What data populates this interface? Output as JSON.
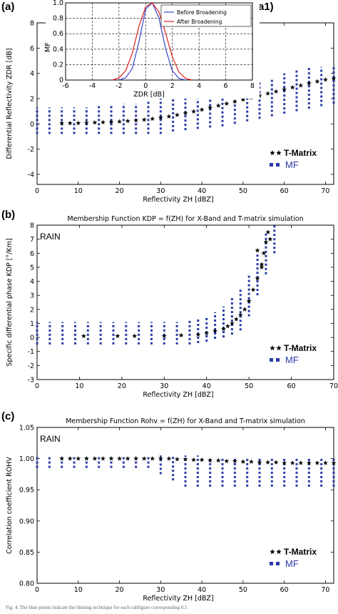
{
  "panels": {
    "a": {
      "letter": "(a)",
      "sub_letter": "(a1)"
    },
    "b": {
      "letter": "(b)"
    },
    "c": {
      "letter": "(c)"
    }
  },
  "colors": {
    "mf": "#2a3aa8",
    "tmatrix": "#000000",
    "before": "#3a44c8",
    "after": "#e02020"
  },
  "caption": "Fig. 4. The blue points indicate the binning technique for each subfigure corresponding 0.1",
  "chart_data": [
    {
      "id": "a",
      "type": "scatter",
      "title": "",
      "xlabel": "Reflectivity ZH [dBZ]",
      "ylabel": "Differential Reflectivity ZDR [dB]",
      "xlim": [
        0,
        72
      ],
      "ylim": [
        -4.8,
        8
      ],
      "xticks": [
        0,
        10,
        20,
        30,
        40,
        50,
        60,
        70
      ],
      "yticks": [
        -4,
        -2,
        0,
        2,
        4,
        6,
        8
      ],
      "xtick_labels": [
        "0",
        "10",
        "20",
        "30",
        "40",
        "50",
        "60",
        "70"
      ],
      "ytick_labels": [
        "-4",
        "-2",
        "0",
        "2",
        "4",
        "6",
        "8"
      ],
      "legend": [
        "T-Matrix",
        "MF"
      ],
      "legend_position": "bottom-right",
      "series": [
        {
          "name": "T-Matrix",
          "marker": "star",
          "x": [
            6,
            8,
            10,
            12,
            14,
            16,
            18,
            20,
            22,
            24,
            26,
            28,
            30,
            32,
            34,
            36,
            38,
            40,
            42,
            44,
            46,
            48,
            50,
            52,
            54,
            56,
            58,
            60,
            62,
            64,
            66,
            68,
            70,
            72
          ],
          "y": [
            0.05,
            0.05,
            0.06,
            0.08,
            0.1,
            0.12,
            0.15,
            0.18,
            0.22,
            0.27,
            0.33,
            0.4,
            0.48,
            0.58,
            0.7,
            0.84,
            0.98,
            1.12,
            1.28,
            1.44,
            1.6,
            1.76,
            1.92,
            2.08,
            2.24,
            2.4,
            2.56,
            2.72,
            2.88,
            3.04,
            3.2,
            3.36,
            3.5,
            3.6
          ]
        },
        {
          "name": "MF",
          "marker": "dashed-band",
          "x": [
            0,
            3,
            6,
            9,
            12,
            15,
            18,
            21,
            24,
            27,
            30,
            33,
            36,
            39,
            42,
            45,
            48,
            51,
            54,
            57,
            60,
            63,
            66,
            69,
            72
          ],
          "low": [
            -0.8,
            -0.8,
            -0.8,
            -0.8,
            -0.8,
            -0.8,
            -0.8,
            -0.8,
            -0.8,
            -0.8,
            -0.8,
            -0.6,
            -0.5,
            -0.4,
            -0.3,
            -0.2,
            0,
            0.2,
            0.4,
            0.6,
            0.8,
            1.0,
            1.2,
            1.4,
            1.6
          ],
          "high": [
            1.3,
            1.3,
            1.3,
            1.3,
            1.3,
            1.4,
            1.5,
            1.6,
            1.6,
            1.8,
            2.0,
            2.2,
            2.3,
            2.4,
            2.6,
            2.8,
            3.0,
            3.2,
            3.4,
            3.6,
            4.0,
            4.3,
            4.5,
            4.5,
            4.5
          ]
        }
      ]
    },
    {
      "id": "a1",
      "type": "line",
      "title": "",
      "xlabel": "ZDR [dB]",
      "ylabel": "MF",
      "xlim": [
        -6,
        8
      ],
      "ylim": [
        0,
        1.0
      ],
      "xticks": [
        -6,
        -4,
        -2,
        0,
        2,
        4,
        6,
        8
      ],
      "yticks": [
        0,
        0.2,
        0.4,
        0.6,
        0.8,
        1.0
      ],
      "xtick_labels": [
        "-6",
        "-4",
        "-2",
        "0",
        "2",
        "4",
        "6",
        "8"
      ],
      "ytick_labels": [
        "0",
        "0.2",
        "0.4",
        "0.6",
        "0.8",
        "1.0"
      ],
      "grid": true,
      "legend_position": "top-right",
      "series": [
        {
          "name": "Before Broadening",
          "x": [
            -2,
            -1.5,
            -1,
            -0.5,
            0,
            0.5,
            1,
            1.5,
            2,
            2.5,
            3
          ],
          "y": [
            0.0,
            0.03,
            0.15,
            0.5,
            0.92,
            1.0,
            0.8,
            0.4,
            0.12,
            0.02,
            0.0
          ]
        },
        {
          "name": "After Broadening",
          "x": [
            -2.5,
            -2,
            -1.5,
            -1,
            -0.5,
            0,
            0.5,
            1,
            1.5,
            2,
            2.5,
            3,
            3.5
          ],
          "y": [
            0.0,
            0.03,
            0.12,
            0.35,
            0.7,
            0.95,
            1.0,
            0.88,
            0.6,
            0.3,
            0.1,
            0.02,
            0.0
          ]
        }
      ]
    },
    {
      "id": "b",
      "type": "scatter",
      "title": "Membership Function KDP = f(ZH) for X-Band and T-matrix simulation",
      "xlabel": "Reflectivity ZH [dBZ]",
      "ylabel": "Specific differential phase KDP [°/Km]",
      "annotation": "RAIN",
      "xlim": [
        0,
        70
      ],
      "ylim": [
        -3,
        8
      ],
      "xticks": [
        0,
        10,
        20,
        30,
        40,
        50,
        60,
        70
      ],
      "yticks": [
        -3,
        -2,
        -1,
        0,
        1,
        2,
        3,
        4,
        5,
        6,
        7,
        8
      ],
      "xtick_labels": [
        "0",
        "10",
        "20",
        "30",
        "40",
        "50",
        "60",
        "70"
      ],
      "ytick_labels": [
        "-3",
        "-2",
        "-1",
        "0",
        "1",
        "2",
        "3",
        "4",
        "5",
        "6",
        "7",
        "8"
      ],
      "legend": [
        "T-Matrix",
        "MF"
      ],
      "legend_position": "bottom-right",
      "series": [
        {
          "name": "T-Matrix",
          "marker": "star",
          "x": [
            11,
            19,
            23,
            30,
            34,
            38,
            40,
            42,
            44,
            45,
            46,
            47,
            48,
            49,
            50,
            51,
            52,
            53,
            53.5,
            54,
            54.5,
            55,
            52,
            53
          ],
          "y": [
            0.1,
            0.1,
            0.1,
            0.1,
            0.15,
            0.2,
            0.3,
            0.45,
            0.6,
            0.8,
            1.0,
            1.3,
            1.6,
            2.0,
            2.6,
            3.4,
            4.2,
            5.2,
            6.0,
            6.8,
            7.5,
            7.0,
            6.2,
            5.0
          ]
        },
        {
          "name": "MF",
          "marker": "dashed-band",
          "x": [
            0,
            3,
            6,
            9,
            12,
            15,
            18,
            21,
            24,
            27,
            30,
            33,
            36,
            38,
            40,
            42,
            44,
            46,
            48,
            50,
            52,
            54,
            56
          ],
          "low": [
            -0.5,
            -0.5,
            -0.5,
            -0.5,
            -0.5,
            -0.5,
            -0.5,
            -0.5,
            -0.5,
            -0.5,
            -0.5,
            -0.5,
            -0.5,
            -0.4,
            -0.3,
            -0.1,
            0.0,
            0.2,
            0.5,
            1.5,
            3.0,
            4.5,
            6.0
          ],
          "high": [
            1.1,
            1.1,
            1.1,
            1.1,
            1.1,
            1.1,
            1.1,
            1.1,
            1.1,
            1.1,
            1.1,
            1.1,
            1.2,
            1.3,
            1.5,
            1.8,
            2.2,
            2.8,
            3.5,
            4.5,
            6.0,
            7.5,
            8.0
          ]
        }
      ]
    },
    {
      "id": "c",
      "type": "scatter",
      "title": "Membership Function Rohv = f(ZH) for X-Band and T-matrix simulation",
      "xlabel": "Reflectivity ZH [dBZ]",
      "ylabel": "Correlation coefficient ROHV",
      "annotation": "RAIN",
      "xlim": [
        0,
        72
      ],
      "ylim": [
        0.8,
        1.05
      ],
      "xticks": [
        0,
        10,
        20,
        30,
        40,
        50,
        60,
        70
      ],
      "yticks": [
        0.8,
        0.85,
        0.9,
        0.95,
        1.0,
        1.05
      ],
      "xtick_labels": [
        "0",
        "10",
        "20",
        "30",
        "40",
        "50",
        "60",
        "70"
      ],
      "ytick_labels": [
        "0.80",
        "0.85",
        "0.90",
        "0.95",
        "1.00",
        "1.05"
      ],
      "legend": [
        "T-Matrix",
        "MF"
      ],
      "legend_position": "bottom-right",
      "series": [
        {
          "name": "T-Matrix",
          "marker": "star",
          "x": [
            6,
            8,
            10,
            12,
            14,
            16,
            18,
            20,
            22,
            24,
            26,
            28,
            30,
            32,
            34,
            36,
            38,
            40,
            42,
            44,
            46,
            48,
            50,
            52,
            54,
            56,
            58,
            60,
            62,
            64,
            66,
            68,
            70,
            72
          ],
          "y": [
            1.0,
            1.0,
            1.0,
            1.0,
            1.0,
            1.0,
            1.0,
            1.0,
            1.0,
            1.0,
            1.0,
            1.0,
            1.0,
            1.0,
            0.999,
            0.999,
            0.998,
            0.998,
            0.997,
            0.997,
            0.996,
            0.996,
            0.995,
            0.995,
            0.994,
            0.994,
            0.994,
            0.993,
            0.993,
            0.993,
            0.993,
            0.993,
            0.993,
            0.993
          ]
        },
        {
          "name": "MF",
          "marker": "dashed-band",
          "x": [
            0,
            3,
            6,
            9,
            12,
            15,
            18,
            21,
            24,
            27,
            30,
            33,
            36,
            39,
            42,
            45,
            48,
            51,
            54,
            57,
            60,
            63,
            66,
            69,
            72
          ],
          "low": [
            0.985,
            0.985,
            0.985,
            0.985,
            0.985,
            0.985,
            0.985,
            0.985,
            0.985,
            0.985,
            0.975,
            0.965,
            0.955,
            0.955,
            0.955,
            0.955,
            0.955,
            0.955,
            0.955,
            0.955,
            0.955,
            0.955,
            0.955,
            0.955,
            0.955
          ],
          "high": [
            1.005,
            1.005,
            1.005,
            1.005,
            1.005,
            1.005,
            1.005,
            1.005,
            1.005,
            1.005,
            1.005,
            1.005,
            1.005,
            1.005,
            1.0,
            1.0,
            1.0,
            1.0,
            1.0,
            1.0,
            1.0,
            1.0,
            1.0,
            1.0,
            1.0
          ]
        }
      ]
    }
  ]
}
